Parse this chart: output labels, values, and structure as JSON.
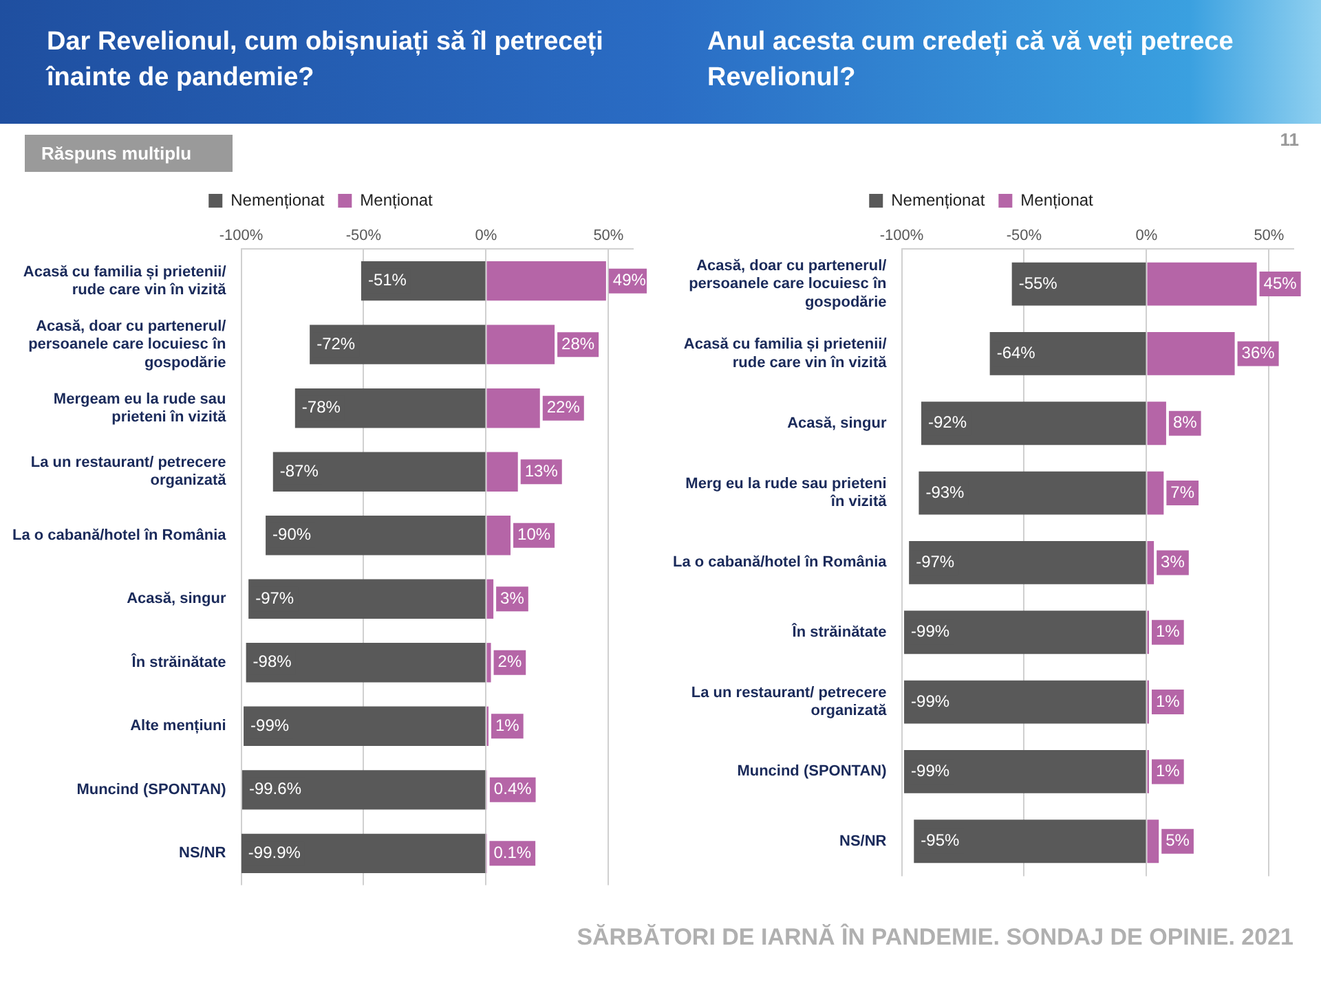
{
  "chart_data": [
    {
      "type": "bar",
      "orientation": "horizontal",
      "stacked": true,
      "title": "Dar Revelionul, cum obișnuiați să îl petreceți înainte de pandemie?",
      "annotations": [
        "Răspuns multiplu"
      ],
      "categories": [
        "Acasă cu familia și prietenii/ rude care vin în vizită",
        "Acasă, doar cu partenerul/ persoanele care locuiesc în gospodărie",
        "Mergeam eu la rude sau prieteni în vizită",
        "La un restaurant/ petrecere organizată",
        "La o cabană/hotel în România",
        "Acasă, singur",
        "În străinătate",
        "Alte mențiuni",
        "Muncind (SPONTAN)",
        "NS/NR"
      ],
      "series": [
        {
          "name": "Nemenționat",
          "color": "#595959",
          "values": [
            -51,
            -72,
            -78,
            -87,
            -90,
            -97,
            -98,
            -99,
            -99.6,
            -99.9
          ],
          "value_labels": [
            "-51%",
            "-72%",
            "-78%",
            "-87%",
            "-90%",
            "-97%",
            "-98%",
            "-99%",
            "-99.6%",
            "-99.9%"
          ]
        },
        {
          "name": "Menționat",
          "color": "#b565a7",
          "values": [
            49,
            28,
            22,
            13,
            10,
            3,
            2,
            1,
            0.4,
            0.1
          ],
          "value_labels": [
            "49%",
            "28%",
            "22%",
            "13%",
            "10%",
            "3%",
            "2%",
            "1%",
            "0.4%",
            "0.1%"
          ]
        }
      ],
      "xlim": [
        -100,
        60
      ],
      "xticks": [
        {
          "value": -100,
          "label": "-100%"
        },
        {
          "value": -50,
          "label": "-50%"
        },
        {
          "value": 0,
          "label": "0%"
        },
        {
          "value": 50,
          "label": "50%"
        }
      ],
      "grid": "x",
      "legend": "top"
    },
    {
      "type": "bar",
      "orientation": "horizontal",
      "stacked": true,
      "title": "Anul acesta cum credeți că vă veți petrece Revelionul?",
      "annotations": [
        "11",
        "SĂRBĂTORI DE IARNĂ ÎN PANDEMIE. SONDAJ DE OPINIE. 2021"
      ],
      "categories": [
        "Acasă, doar cu partenerul/ persoanele care locuiesc în gospodărie",
        "Acasă cu familia și prietenii/ rude care vin în vizită",
        "Acasă, singur",
        "Merg eu la rude sau prieteni în vizită",
        "La o cabană/hotel în România",
        "În străinătate",
        "La un restaurant/ petrecere organizată",
        "Muncind (SPONTAN)",
        "NS/NR"
      ],
      "series": [
        {
          "name": "Nemenționat",
          "color": "#595959",
          "values": [
            -55,
            -64,
            -92,
            -93,
            -97,
            -99,
            -99,
            -99,
            -95
          ],
          "value_labels": [
            "-55%",
            "-64%",
            "-92%",
            "-93%",
            "-97%",
            "-99%",
            "-99%",
            "-99%",
            "-95%"
          ]
        },
        {
          "name": "Menționat",
          "color": "#b565a7",
          "values": [
            45,
            36,
            8,
            7,
            3,
            1,
            1,
            1,
            5
          ],
          "value_labels": [
            "45%",
            "36%",
            "8%",
            "7%",
            "3%",
            "1%",
            "1%",
            "1%",
            "5%"
          ]
        }
      ],
      "xlim": [
        -100,
        60
      ],
      "xticks": [
        {
          "value": -100,
          "label": "-100%"
        },
        {
          "value": -50,
          "label": "-50%"
        },
        {
          "value": 0,
          "label": "0%"
        },
        {
          "value": 50,
          "label": "50%"
        }
      ],
      "grid": "x",
      "legend": "top"
    }
  ]
}
